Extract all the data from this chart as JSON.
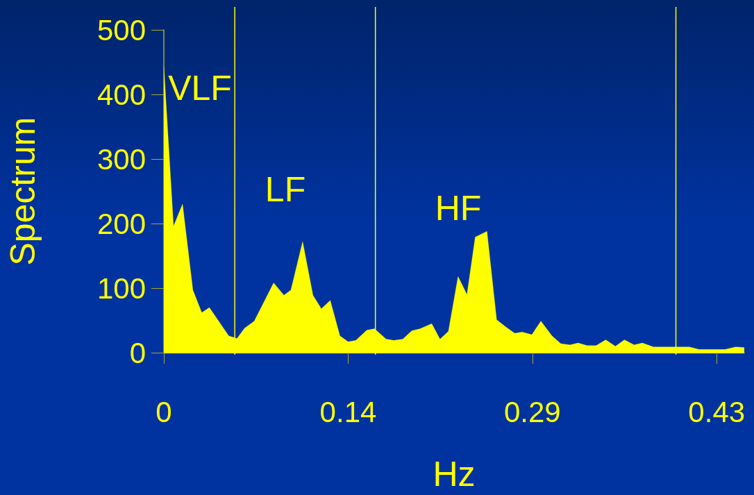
{
  "chart_data": {
    "type": "area",
    "xlabel": "Hz",
    "ylabel": "Spectrum",
    "x": [
      0,
      0.0075,
      0.0145,
      0.0225,
      0.0294,
      0.0353,
      0.0503,
      0.0567,
      0.0626,
      0.0701,
      0.0851,
      0.0931,
      0.0985,
      0.1076,
      0.1156,
      0.1221,
      0.129,
      0.1365,
      0.1429,
      0.1488,
      0.1574,
      0.1633,
      0.1724,
      0.1783,
      0.1852,
      0.1922,
      0.1986,
      0.2077,
      0.2141,
      0.2206,
      0.2281,
      0.235,
      0.2414,
      0.2505,
      0.258,
      0.265,
      0.272,
      0.2778,
      0.2853,
      0.2923,
      0.3009,
      0.3078,
      0.3148,
      0.3212,
      0.3282,
      0.3351,
      0.3426,
      0.3501,
      0.3571,
      0.3646,
      0.371,
      0.3796,
      0.4074,
      0.4149,
      0.4352,
      0.4433,
      0.45
    ],
    "series": [
      {
        "color": "#ffff00",
        "values": [
          443,
          196,
          230,
          97,
          62,
          70,
          26,
          22,
          38,
          49,
          108,
          89,
          97,
          172,
          89,
          68,
          81,
          26,
          17,
          19,
          35,
          37,
          21,
          19,
          21,
          34,
          37,
          45,
          21,
          33,
          118,
          90,
          179,
          188,
          51,
          40,
          30,
          32,
          28,
          49,
          26,
          14,
          12,
          15,
          11,
          11,
          20,
          10,
          20,
          12,
          15,
          9,
          9,
          5,
          5,
          9,
          8
        ]
      }
    ],
    "xlim": [
      0,
      0.45
    ],
    "xticks": [
      0,
      {
        "value": 0.1429,
        "label": "0.14"
      },
      {
        "value": 0.2857,
        "label": "0.29"
      },
      {
        "value": 0.4286,
        "label": "0.43"
      }
    ],
    "ylim": [
      0,
      500
    ],
    "yticks": [
      0,
      100,
      200,
      300,
      400,
      500
    ],
    "ref_lines": [
      {
        "axis": "x",
        "value": 0.055,
        "color": "#ffff00"
      },
      {
        "axis": "x",
        "value": 0.164,
        "color": "#ffff00"
      },
      {
        "axis": "x",
        "value": 0.397,
        "color": "#ffff00"
      }
    ],
    "annotations": [
      "VLF",
      "LF",
      "HF"
    ],
    "grid": false
  }
}
